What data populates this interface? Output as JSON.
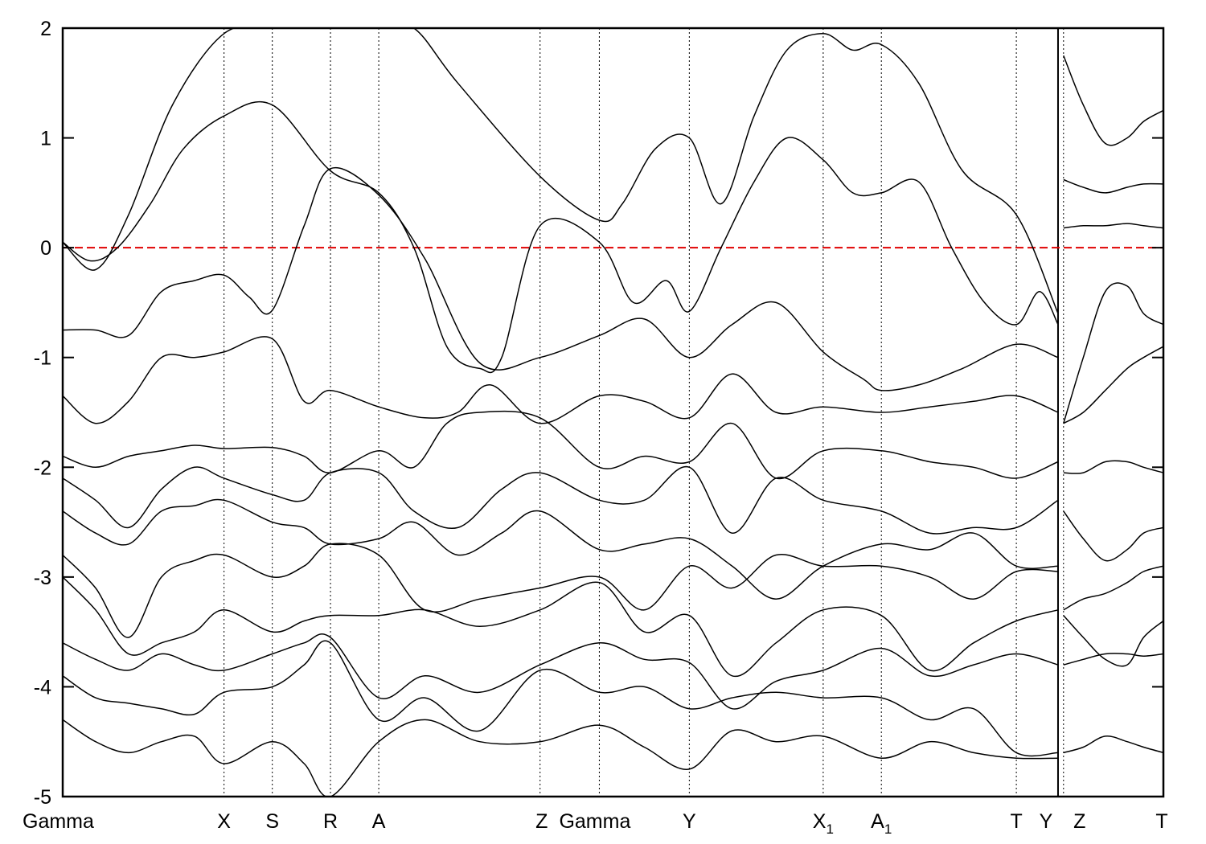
{
  "chart_data": {
    "type": "line",
    "title": "",
    "xlabel": "",
    "ylabel": "",
    "ylim": [
      -5,
      2
    ],
    "yticks": [
      -5,
      -4,
      -3,
      -2,
      -1,
      0,
      1,
      2
    ],
    "grid": false,
    "legend": "none",
    "fermi_level": {
      "value": 0,
      "color": "#e00000",
      "style": "dashed"
    },
    "kpath": [
      {
        "label": "Gamma",
        "sub": "",
        "x": 0.0
      },
      {
        "label": "X",
        "sub": "",
        "x": 1.47
      },
      {
        "label": "S",
        "sub": "",
        "x": 1.91
      },
      {
        "label": "R",
        "sub": "",
        "x": 2.44
      },
      {
        "label": "A",
        "sub": "",
        "x": 2.88
      },
      {
        "label": "Z",
        "sub": "",
        "x": 4.35
      },
      {
        "label": "Gamma",
        "sub": "",
        "x": 4.89
      },
      {
        "label": "Y",
        "sub": "",
        "x": 5.71
      },
      {
        "label": "X",
        "sub": "1",
        "x": 6.93
      },
      {
        "label": "A",
        "sub": "1",
        "x": 7.46
      },
      {
        "label": "T",
        "sub": "",
        "x": 8.69
      },
      {
        "label": "Y",
        "sub": "",
        "x": 9.07
      },
      {
        "label": "Z",
        "sub": "",
        "x": 9.12
      },
      {
        "label": "T",
        "sub": "",
        "x": 10.03
      }
    ],
    "series": [
      {
        "x": [
          0.0,
          0.3,
          0.6,
          1.0,
          1.47,
          1.91,
          2.44,
          2.88,
          3.2,
          3.6,
          4.35,
          4.89,
          5.1,
          5.4,
          5.71,
          6.0,
          6.3,
          6.6,
          6.93,
          7.2,
          7.46,
          7.8,
          8.2,
          8.69,
          9.07
        ],
        "values": [
          0.05,
          -0.2,
          0.3,
          1.3,
          1.95,
          2.0,
          2.0,
          2.0,
          2.0,
          1.5,
          0.65,
          0.25,
          0.4,
          0.9,
          1.0,
          0.4,
          1.2,
          1.8,
          1.95,
          1.8,
          1.85,
          1.5,
          0.7,
          0.3,
          -0.6
        ]
      },
      {
        "x": [
          0.0,
          0.25,
          0.5,
          0.8,
          1.1,
          1.47,
          1.91,
          2.44,
          2.88,
          3.2,
          3.5,
          3.8,
          4.0,
          4.35,
          4.89,
          5.2,
          5.5,
          5.71,
          6.0,
          6.3,
          6.6,
          6.93,
          7.2,
          7.46,
          7.8,
          8.1,
          8.4,
          8.69,
          8.9,
          9.07
        ],
        "values": [
          0.05,
          -0.12,
          0.0,
          0.4,
          0.9,
          1.2,
          1.3,
          0.7,
          0.5,
          0.0,
          -0.9,
          -1.1,
          -1.0,
          0.2,
          0.05,
          -0.5,
          -0.3,
          -0.58,
          0.0,
          0.6,
          1.0,
          0.8,
          0.5,
          0.5,
          0.6,
          0.0,
          -0.5,
          -0.7,
          -0.4,
          -0.7
        ]
      },
      {
        "x": [
          0.0,
          0.3,
          0.6,
          0.9,
          1.2,
          1.47,
          1.7,
          1.91,
          2.2,
          2.44,
          2.88,
          3.3,
          3.8,
          4.35,
          4.89,
          5.3,
          5.71,
          6.1,
          6.5,
          6.93,
          7.3,
          7.46,
          7.8,
          8.2,
          8.69,
          9.07
        ],
        "values": [
          -0.75,
          -0.75,
          -0.8,
          -0.4,
          -0.3,
          -0.25,
          -0.45,
          -0.57,
          0.2,
          0.72,
          0.48,
          -0.1,
          -1.05,
          -1.0,
          -0.8,
          -0.65,
          -1.0,
          -0.7,
          -0.5,
          -0.95,
          -1.2,
          -1.3,
          -1.25,
          -1.1,
          -0.88,
          -1.0
        ]
      },
      {
        "x": [
          0.0,
          0.3,
          0.6,
          0.9,
          1.2,
          1.47,
          1.91,
          2.2,
          2.44,
          2.88,
          3.3,
          3.6,
          3.9,
          4.35,
          4.89,
          5.3,
          5.71,
          6.1,
          6.5,
          6.93,
          7.46,
          7.9,
          8.3,
          8.69,
          9.07
        ],
        "values": [
          -1.35,
          -1.6,
          -1.4,
          -1.0,
          -1.0,
          -0.95,
          -0.83,
          -1.4,
          -1.3,
          -1.45,
          -1.55,
          -1.5,
          -1.25,
          -1.6,
          -1.35,
          -1.4,
          -1.55,
          -1.15,
          -1.5,
          -1.45,
          -1.5,
          -1.45,
          -1.4,
          -1.35,
          -1.5
        ]
      },
      {
        "x": [
          0.0,
          0.3,
          0.6,
          0.9,
          1.2,
          1.47,
          1.91,
          2.2,
          2.44,
          2.88,
          3.2,
          3.5,
          3.8,
          4.35,
          4.89,
          5.3,
          5.71,
          6.1,
          6.5,
          6.93,
          7.46,
          7.9,
          8.3,
          8.69,
          9.07
        ],
        "values": [
          -1.9,
          -2.0,
          -1.9,
          -1.85,
          -1.8,
          -1.83,
          -1.82,
          -1.9,
          -2.05,
          -1.85,
          -2.0,
          -1.6,
          -1.5,
          -1.55,
          -2.0,
          -1.9,
          -1.95,
          -1.6,
          -2.1,
          -1.85,
          -1.85,
          -1.95,
          -2.0,
          -2.1,
          -1.95
        ]
      },
      {
        "x": [
          0.0,
          0.3,
          0.6,
          0.9,
          1.2,
          1.47,
          1.91,
          2.2,
          2.44,
          2.88,
          3.2,
          3.6,
          4.0,
          4.35,
          4.89,
          5.3,
          5.71,
          6.1,
          6.5,
          6.93,
          7.46,
          7.9,
          8.3,
          8.69,
          9.07
        ],
        "values": [
          -2.1,
          -2.3,
          -2.55,
          -2.2,
          -2.0,
          -2.1,
          -2.25,
          -2.3,
          -2.05,
          -2.05,
          -2.4,
          -2.55,
          -2.2,
          -2.05,
          -2.3,
          -2.3,
          -2.0,
          -2.6,
          -2.1,
          -2.3,
          -2.4,
          -2.6,
          -2.55,
          -2.55,
          -2.3
        ]
      },
      {
        "x": [
          0.0,
          0.3,
          0.6,
          0.9,
          1.2,
          1.47,
          1.91,
          2.2,
          2.44,
          2.88,
          3.2,
          3.6,
          4.0,
          4.35,
          4.89,
          5.3,
          5.71,
          6.1,
          6.5,
          6.93,
          7.46,
          7.9,
          8.3,
          8.69,
          9.07
        ],
        "values": [
          -2.4,
          -2.6,
          -2.7,
          -2.4,
          -2.35,
          -2.3,
          -2.5,
          -2.55,
          -2.7,
          -2.65,
          -2.5,
          -2.8,
          -2.6,
          -2.4,
          -2.75,
          -2.7,
          -2.65,
          -2.9,
          -3.2,
          -2.9,
          -2.7,
          -2.75,
          -2.6,
          -2.9,
          -2.9
        ]
      },
      {
        "x": [
          0.0,
          0.3,
          0.6,
          0.9,
          1.2,
          1.47,
          1.91,
          2.2,
          2.44,
          2.88,
          3.3,
          3.8,
          4.35,
          4.89,
          5.3,
          5.71,
          6.1,
          6.5,
          6.93,
          7.46,
          7.9,
          8.3,
          8.69,
          9.07
        ],
        "values": [
          -2.8,
          -3.1,
          -3.55,
          -3.0,
          -2.85,
          -2.8,
          -3.0,
          -2.9,
          -2.7,
          -2.8,
          -3.3,
          -3.2,
          -3.1,
          -3.0,
          -3.3,
          -2.9,
          -3.1,
          -2.8,
          -2.9,
          -2.9,
          -3.0,
          -3.2,
          -2.95,
          -2.95
        ]
      },
      {
        "x": [
          0.0,
          0.3,
          0.6,
          0.9,
          1.2,
          1.47,
          1.91,
          2.2,
          2.44,
          2.88,
          3.3,
          3.8,
          4.35,
          4.89,
          5.3,
          5.71,
          6.1,
          6.5,
          6.93,
          7.46,
          7.9,
          8.3,
          8.69,
          9.07
        ],
        "values": [
          -3.0,
          -3.3,
          -3.7,
          -3.6,
          -3.5,
          -3.3,
          -3.5,
          -3.4,
          -3.35,
          -3.35,
          -3.3,
          -3.45,
          -3.3,
          -3.05,
          -3.5,
          -3.35,
          -3.9,
          -3.6,
          -3.3,
          -3.35,
          -3.85,
          -3.6,
          -3.4,
          -3.3
        ]
      },
      {
        "x": [
          0.0,
          0.3,
          0.6,
          0.9,
          1.2,
          1.47,
          1.91,
          2.2,
          2.44,
          2.88,
          3.3,
          3.8,
          4.35,
          4.89,
          5.3,
          5.71,
          6.1,
          6.5,
          6.93,
          7.46,
          7.9,
          8.3,
          8.69,
          9.07
        ],
        "values": [
          -3.6,
          -3.75,
          -3.85,
          -3.7,
          -3.8,
          -3.85,
          -3.7,
          -3.6,
          -3.55,
          -4.1,
          -3.9,
          -4.05,
          -3.8,
          -3.6,
          -3.75,
          -3.78,
          -4.2,
          -3.95,
          -3.85,
          -3.65,
          -3.9,
          -3.8,
          -3.7,
          -3.8
        ]
      },
      {
        "x": [
          0.0,
          0.3,
          0.6,
          0.9,
          1.2,
          1.47,
          1.91,
          2.2,
          2.44,
          2.88,
          3.3,
          3.8,
          4.35,
          4.89,
          5.3,
          5.71,
          6.1,
          6.5,
          6.93,
          7.46,
          7.9,
          8.3,
          8.69,
          9.07
        ],
        "values": [
          -3.9,
          -4.1,
          -4.15,
          -4.2,
          -4.25,
          -4.05,
          -4.0,
          -3.8,
          -3.6,
          -4.3,
          -4.1,
          -4.4,
          -3.85,
          -4.05,
          -4.0,
          -4.2,
          -4.1,
          -4.05,
          -4.1,
          -4.1,
          -4.3,
          -4.2,
          -4.6,
          -4.6
        ]
      },
      {
        "x": [
          0.0,
          0.3,
          0.6,
          0.9,
          1.2,
          1.47,
          1.91,
          2.2,
          2.44,
          2.88,
          3.3,
          3.8,
          4.35,
          4.89,
          5.3,
          5.71,
          6.1,
          6.5,
          6.93,
          7.46,
          7.9,
          8.3,
          8.69,
          9.07
        ],
        "values": [
          -4.3,
          -4.5,
          -4.6,
          -4.5,
          -4.45,
          -4.7,
          -4.5,
          -4.7,
          -5.0,
          -4.5,
          -4.3,
          -4.5,
          -4.5,
          -4.35,
          -4.55,
          -4.75,
          -4.4,
          -4.5,
          -4.45,
          -4.65,
          -4.5,
          -4.6,
          -4.65,
          -4.65
        ]
      },
      {
        "x": [
          9.12,
          9.3,
          9.5,
          9.7,
          9.85,
          10.03
        ],
        "values": [
          1.75,
          1.3,
          0.95,
          1.0,
          1.15,
          1.25
        ]
      },
      {
        "x": [
          9.12,
          9.3,
          9.5,
          9.7,
          9.85,
          10.03
        ],
        "values": [
          0.62,
          0.55,
          0.5,
          0.55,
          0.58,
          0.58
        ]
      },
      {
        "x": [
          9.12,
          9.3,
          9.5,
          9.7,
          9.85,
          10.03
        ],
        "values": [
          0.18,
          0.2,
          0.2,
          0.22,
          0.2,
          0.18
        ]
      },
      {
        "x": [
          9.12,
          9.3,
          9.5,
          9.7,
          9.85,
          10.03
        ],
        "values": [
          -1.6,
          -1.0,
          -0.4,
          -0.35,
          -0.6,
          -0.7
        ]
      },
      {
        "x": [
          9.12,
          9.3,
          9.5,
          9.7,
          9.85,
          10.03
        ],
        "values": [
          -1.6,
          -1.5,
          -1.3,
          -1.1,
          -1.0,
          -0.9
        ]
      },
      {
        "x": [
          9.12,
          9.3,
          9.5,
          9.7,
          9.85,
          10.03
        ],
        "values": [
          -2.05,
          -2.05,
          -1.95,
          -1.95,
          -2.0,
          -2.05
        ]
      },
      {
        "x": [
          9.12,
          9.3,
          9.5,
          9.7,
          9.85,
          10.03
        ],
        "values": [
          -2.4,
          -2.65,
          -2.85,
          -2.75,
          -2.6,
          -2.55
        ]
      },
      {
        "x": [
          9.12,
          9.3,
          9.5,
          9.7,
          9.85,
          10.03
        ],
        "values": [
          -3.3,
          -3.2,
          -3.15,
          -3.05,
          -2.95,
          -2.9
        ]
      },
      {
        "x": [
          9.12,
          9.3,
          9.5,
          9.7,
          9.85,
          10.03
        ],
        "values": [
          -3.35,
          -3.55,
          -3.75,
          -3.8,
          -3.55,
          -3.4
        ]
      },
      {
        "x": [
          9.12,
          9.3,
          9.5,
          9.7,
          9.85,
          10.03
        ],
        "values": [
          -3.8,
          -3.75,
          -3.7,
          -3.7,
          -3.72,
          -3.7
        ]
      },
      {
        "x": [
          9.12,
          9.3,
          9.5,
          9.7,
          9.85,
          10.03
        ],
        "values": [
          -4.6,
          -4.55,
          -4.45,
          -4.5,
          -4.55,
          -4.6
        ]
      }
    ]
  }
}
